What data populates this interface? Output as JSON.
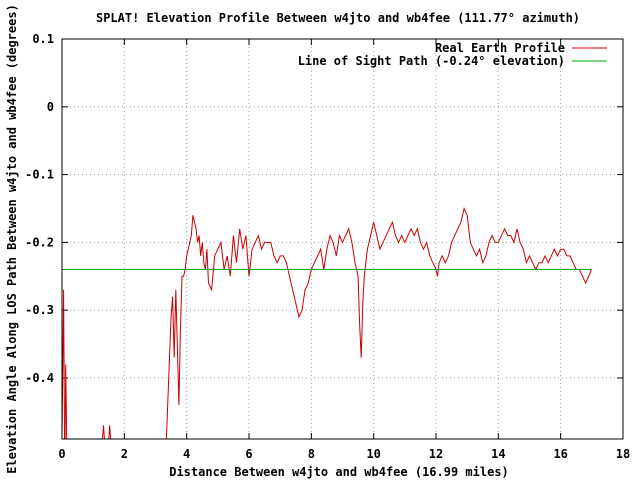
{
  "chart_data": {
    "type": "line",
    "title": "SPLAT! Elevation Profile Between w4jto and wb4fee (111.77° azimuth)",
    "xlabel": "Distance Between w4jto and wb4fee (16.99 miles)",
    "ylabel": "Elevation Angle Along LOS Path Between w4jto and wb4fee (degrees)",
    "xlim": [
      0,
      18
    ],
    "ylim": [
      -0.49,
      0.1
    ],
    "xticks": [
      0,
      2,
      4,
      6,
      8,
      10,
      12,
      14,
      16,
      18
    ],
    "xtick_labels": [
      "0",
      "2",
      "4",
      "6",
      "8",
      "10",
      "12",
      "14",
      "16",
      "18"
    ],
    "yticks": [
      0.1,
      0,
      -0.1,
      -0.2,
      -0.3,
      -0.4
    ],
    "ytick_labels": [
      "0.1",
      "0",
      "-0.1",
      "-0.2",
      "-0.3",
      "-0.4"
    ],
    "grid": true,
    "legend_position": "top-right",
    "series": [
      {
        "name": "Real Earth Profile",
        "color": "#cc0000",
        "segments": [
          [
            [
              0.0,
              -0.49
            ],
            [
              0.05,
              -0.27
            ],
            [
              0.08,
              -0.49
            ]
          ],
          [
            [
              0.1,
              -0.49
            ],
            [
              0.12,
              -0.38
            ],
            [
              0.15,
              -0.49
            ]
          ],
          [
            [
              1.3,
              -0.49
            ],
            [
              1.33,
              -0.47
            ],
            [
              1.36,
              -0.49
            ]
          ],
          [
            [
              1.5,
              -0.49
            ],
            [
              1.53,
              -0.47
            ],
            [
              1.56,
              -0.49
            ]
          ],
          [
            [
              3.35,
              -0.49
            ],
            [
              3.45,
              -0.37
            ],
            [
              3.5,
              -0.31
            ],
            [
              3.55,
              -0.28
            ],
            [
              3.6,
              -0.37
            ],
            [
              3.65,
              -0.27
            ],
            [
              3.7,
              -0.35
            ],
            [
              3.75,
              -0.44
            ],
            [
              3.8,
              -0.33
            ],
            [
              3.85,
              -0.25
            ],
            [
              3.9,
              -0.25
            ],
            [
              3.95,
              -0.24
            ],
            [
              4.0,
              -0.22
            ],
            [
              4.05,
              -0.21
            ],
            [
              4.1,
              -0.2
            ],
            [
              4.15,
              -0.19
            ],
            [
              4.2,
              -0.16
            ],
            [
              4.25,
              -0.17
            ],
            [
              4.3,
              -0.18
            ],
            [
              4.35,
              -0.2
            ],
            [
              4.4,
              -0.19
            ],
            [
              4.45,
              -0.22
            ],
            [
              4.5,
              -0.2
            ],
            [
              4.55,
              -0.23
            ],
            [
              4.6,
              -0.24
            ],
            [
              4.65,
              -0.21
            ],
            [
              4.7,
              -0.26
            ],
            [
              4.8,
              -0.27
            ],
            [
              4.9,
              -0.22
            ],
            [
              5.0,
              -0.21
            ],
            [
              5.1,
              -0.2
            ],
            [
              5.2,
              -0.24
            ],
            [
              5.3,
              -0.22
            ],
            [
              5.4,
              -0.25
            ],
            [
              5.5,
              -0.19
            ],
            [
              5.6,
              -0.23
            ],
            [
              5.7,
              -0.18
            ],
            [
              5.8,
              -0.21
            ],
            [
              5.9,
              -0.19
            ],
            [
              6.0,
              -0.25
            ],
            [
              6.1,
              -0.21
            ],
            [
              6.2,
              -0.2
            ],
            [
              6.3,
              -0.19
            ],
            [
              6.4,
              -0.21
            ],
            [
              6.5,
              -0.2
            ],
            [
              6.6,
              -0.2
            ],
            [
              6.7,
              -0.2
            ],
            [
              6.8,
              -0.22
            ],
            [
              6.9,
              -0.23
            ],
            [
              7.0,
              -0.22
            ],
            [
              7.1,
              -0.22
            ],
            [
              7.2,
              -0.23
            ],
            [
              7.3,
              -0.25
            ],
            [
              7.4,
              -0.27
            ],
            [
              7.5,
              -0.29
            ],
            [
              7.6,
              -0.31
            ],
            [
              7.7,
              -0.3
            ],
            [
              7.8,
              -0.27
            ],
            [
              7.9,
              -0.26
            ],
            [
              8.0,
              -0.24
            ],
            [
              8.1,
              -0.23
            ],
            [
              8.2,
              -0.22
            ],
            [
              8.3,
              -0.21
            ],
            [
              8.4,
              -0.24
            ],
            [
              8.5,
              -0.21
            ],
            [
              8.6,
              -0.19
            ],
            [
              8.7,
              -0.2
            ],
            [
              8.8,
              -0.22
            ],
            [
              8.9,
              -0.19
            ],
            [
              9.0,
              -0.2
            ],
            [
              9.1,
              -0.19
            ],
            [
              9.2,
              -0.18
            ],
            [
              9.3,
              -0.2
            ],
            [
              9.4,
              -0.23
            ],
            [
              9.5,
              -0.25
            ],
            [
              9.55,
              -0.32
            ],
            [
              9.6,
              -0.37
            ],
            [
              9.65,
              -0.29
            ],
            [
              9.7,
              -0.25
            ],
            [
              9.8,
              -0.21
            ],
            [
              9.9,
              -0.19
            ],
            [
              10.0,
              -0.17
            ],
            [
              10.1,
              -0.19
            ],
            [
              10.2,
              -0.21
            ],
            [
              10.3,
              -0.2
            ],
            [
              10.4,
              -0.19
            ],
            [
              10.5,
              -0.18
            ],
            [
              10.6,
              -0.17
            ],
            [
              10.7,
              -0.19
            ],
            [
              10.8,
              -0.2
            ],
            [
              10.9,
              -0.19
            ],
            [
              11.0,
              -0.2
            ],
            [
              11.1,
              -0.19
            ],
            [
              11.2,
              -0.18
            ],
            [
              11.3,
              -0.19
            ],
            [
              11.4,
              -0.18
            ],
            [
              11.5,
              -0.2
            ],
            [
              11.6,
              -0.21
            ],
            [
              11.7,
              -0.2
            ],
            [
              11.8,
              -0.22
            ],
            [
              11.9,
              -0.23
            ],
            [
              12.0,
              -0.24
            ],
            [
              12.05,
              -0.25
            ],
            [
              12.1,
              -0.23
            ],
            [
              12.2,
              -0.22
            ],
            [
              12.3,
              -0.23
            ],
            [
              12.4,
              -0.22
            ],
            [
              12.5,
              -0.2
            ],
            [
              12.6,
              -0.19
            ],
            [
              12.7,
              -0.18
            ],
            [
              12.8,
              -0.17
            ],
            [
              12.9,
              -0.15
            ],
            [
              13.0,
              -0.16
            ],
            [
              13.1,
              -0.2
            ],
            [
              13.2,
              -0.21
            ],
            [
              13.3,
              -0.22
            ],
            [
              13.4,
              -0.21
            ],
            [
              13.5,
              -0.23
            ],
            [
              13.6,
              -0.22
            ],
            [
              13.7,
              -0.2
            ],
            [
              13.8,
              -0.19
            ],
            [
              13.9,
              -0.2
            ],
            [
              14.0,
              -0.2
            ],
            [
              14.1,
              -0.19
            ],
            [
              14.2,
              -0.18
            ],
            [
              14.3,
              -0.19
            ],
            [
              14.4,
              -0.19
            ],
            [
              14.5,
              -0.2
            ],
            [
              14.6,
              -0.18
            ],
            [
              14.7,
              -0.2
            ],
            [
              14.8,
              -0.21
            ],
            [
              14.9,
              -0.23
            ],
            [
              15.0,
              -0.22
            ],
            [
              15.1,
              -0.23
            ],
            [
              15.2,
              -0.24
            ],
            [
              15.3,
              -0.23
            ],
            [
              15.4,
              -0.23
            ],
            [
              15.5,
              -0.22
            ],
            [
              15.6,
              -0.23
            ],
            [
              15.7,
              -0.22
            ],
            [
              15.8,
              -0.21
            ],
            [
              15.9,
              -0.22
            ],
            [
              16.0,
              -0.21
            ],
            [
              16.1,
              -0.21
            ],
            [
              16.2,
              -0.22
            ],
            [
              16.3,
              -0.22
            ],
            [
              16.4,
              -0.23
            ],
            [
              16.5,
              -0.24
            ],
            [
              16.6,
              -0.24
            ],
            [
              16.7,
              -0.25
            ],
            [
              16.8,
              -0.26
            ],
            [
              16.9,
              -0.25
            ],
            [
              16.99,
              -0.24
            ]
          ]
        ]
      },
      {
        "name": "Line of Sight Path (-0.24° elevation)",
        "color": "#00aa00",
        "segments": [
          [
            [
              0.0,
              -0.24
            ],
            [
              16.99,
              -0.24
            ]
          ]
        ]
      }
    ]
  }
}
